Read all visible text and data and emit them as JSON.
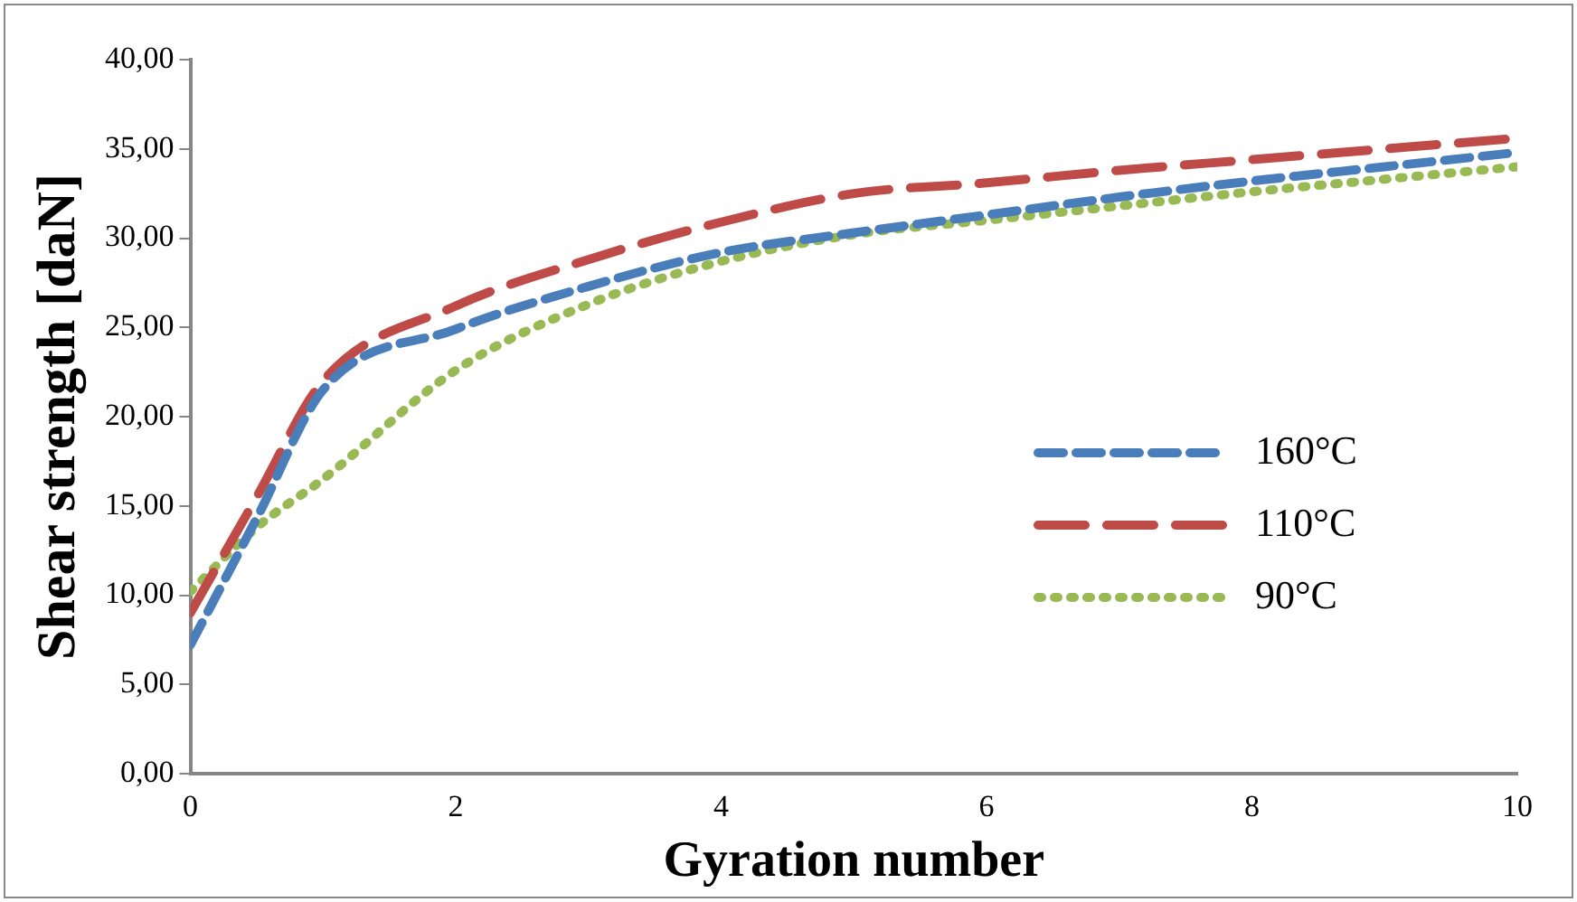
{
  "chart_data": {
    "type": "line",
    "xlabel": "Gyration number",
    "ylabel": "Shear strength [daN]",
    "x": [
      0,
      0.5,
      1,
      2,
      3,
      4,
      5,
      6,
      7,
      8,
      9,
      10
    ],
    "series": [
      {
        "name": "160°C",
        "color": "#4a7ebb",
        "line_style": "dashed",
        "values": [
          7.2,
          14.3,
          21.5,
          24.9,
          27.3,
          29.2,
          30.3,
          31.3,
          32.3,
          33.2,
          34.0,
          34.8
        ]
      },
      {
        "name": "110°C",
        "color": "#be4b48",
        "line_style": "long-dashed",
        "values": [
          9.0,
          15.5,
          22.0,
          26.2,
          28.8,
          30.9,
          32.5,
          33.1,
          33.8,
          34.4,
          35.0,
          35.6
        ]
      },
      {
        "name": "90°C",
        "color": "#98b954",
        "line_style": "dotted",
        "values": [
          10.2,
          13.8,
          16.5,
          22.6,
          26.3,
          28.7,
          30.2,
          31.0,
          31.8,
          32.6,
          33.3,
          34.0
        ]
      }
    ],
    "xlim": [
      0,
      10
    ],
    "xticks": [
      0,
      2,
      4,
      6,
      8,
      10
    ],
    "ylim": [
      0,
      40
    ],
    "yticks": [
      {
        "value": 0,
        "label": "0,00"
      },
      {
        "value": 5,
        "label": "5,00"
      },
      {
        "value": 10,
        "label": "10,00"
      },
      {
        "value": 15,
        "label": "15,00"
      },
      {
        "value": 20,
        "label": "20,00"
      },
      {
        "value": 25,
        "label": "25,00"
      },
      {
        "value": 30,
        "label": "30,00"
      },
      {
        "value": 35,
        "label": "35,00"
      },
      {
        "value": 40,
        "label": "40,00"
      }
    ],
    "grid": false,
    "legend": "right",
    "marker": "none"
  }
}
